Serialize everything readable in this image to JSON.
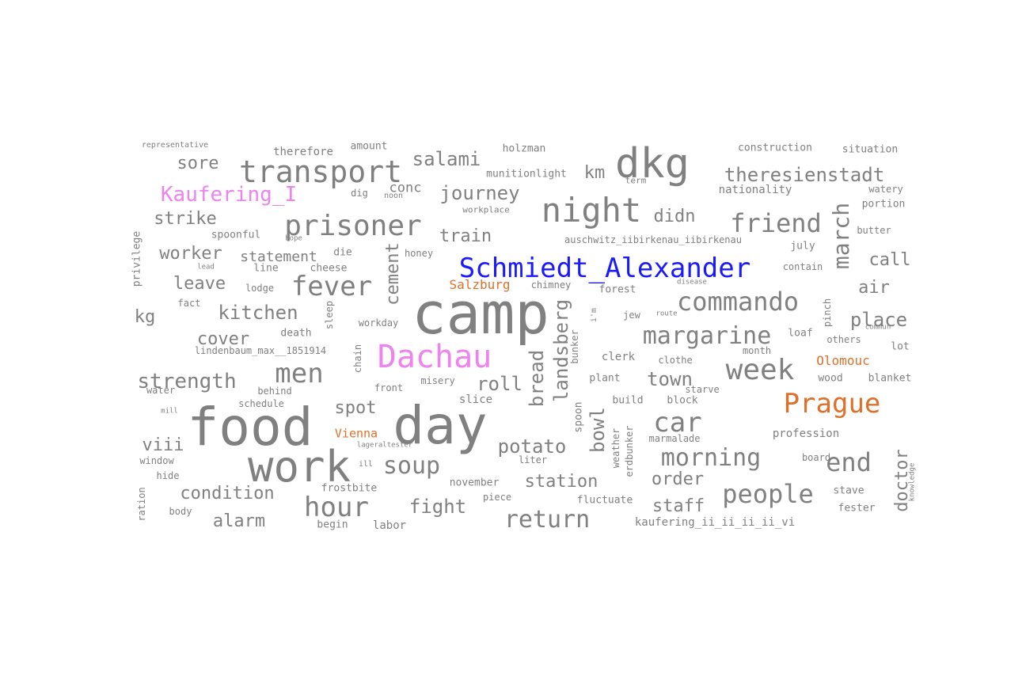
{
  "colors": {
    "default": "#808080",
    "person": "#1a1aff",
    "camp": "#ee82ee",
    "city": "#e06f2a"
  },
  "words": [
    {
      "text": "camp",
      "cat": "default"
    },
    {
      "text": "food",
      "cat": "default"
    },
    {
      "text": "day",
      "cat": "default"
    },
    {
      "text": "work",
      "cat": "default"
    },
    {
      "text": "dkg",
      "cat": "default"
    },
    {
      "text": "transport",
      "cat": "default"
    },
    {
      "text": "night",
      "cat": "default"
    },
    {
      "text": "prisoner",
      "cat": "default"
    },
    {
      "text": "Schmiedt_Alexander",
      "cat": "person"
    },
    {
      "text": "Dachau",
      "cat": "camp"
    },
    {
      "text": "Kaufering_I",
      "cat": "camp"
    },
    {
      "text": "Prague",
      "cat": "city"
    },
    {
      "text": "Salzburg",
      "cat": "city"
    },
    {
      "text": "Vienna",
      "cat": "city"
    },
    {
      "text": "Olomouc",
      "cat": "city"
    },
    {
      "text": "fever",
      "cat": "default"
    },
    {
      "text": "men",
      "cat": "default"
    },
    {
      "text": "hour",
      "cat": "default"
    },
    {
      "text": "car",
      "cat": "default"
    },
    {
      "text": "week",
      "cat": "default"
    },
    {
      "text": "friend",
      "cat": "default"
    },
    {
      "text": "commando",
      "cat": "default"
    },
    {
      "text": "margarine",
      "cat": "default"
    },
    {
      "text": "soup",
      "cat": "default"
    },
    {
      "text": "return",
      "cat": "default"
    },
    {
      "text": "people",
      "cat": "default"
    },
    {
      "text": "end",
      "cat": "default"
    },
    {
      "text": "morning",
      "cat": "default"
    },
    {
      "text": "strength",
      "cat": "default"
    },
    {
      "text": "kitchen",
      "cat": "default"
    },
    {
      "text": "potato",
      "cat": "default"
    },
    {
      "text": "roll",
      "cat": "default"
    },
    {
      "text": "spot",
      "cat": "default"
    },
    {
      "text": "fight",
      "cat": "default"
    },
    {
      "text": "station",
      "cat": "default"
    },
    {
      "text": "salami",
      "cat": "default"
    },
    {
      "text": "journey",
      "cat": "default"
    },
    {
      "text": "theresienstadt",
      "cat": "default"
    },
    {
      "text": "sore",
      "cat": "default"
    },
    {
      "text": "strike",
      "cat": "default"
    },
    {
      "text": "worker",
      "cat": "default"
    },
    {
      "text": "leave",
      "cat": "default"
    },
    {
      "text": "cover",
      "cat": "default"
    },
    {
      "text": "viii",
      "cat": "default"
    },
    {
      "text": "condition",
      "cat": "default"
    },
    {
      "text": "alarm",
      "cat": "default"
    },
    {
      "text": "kg",
      "cat": "default"
    },
    {
      "text": "train",
      "cat": "default"
    },
    {
      "text": "didn",
      "cat": "default"
    },
    {
      "text": "km",
      "cat": "default"
    },
    {
      "text": "call",
      "cat": "default"
    },
    {
      "text": "air",
      "cat": "default"
    },
    {
      "text": "place",
      "cat": "default"
    },
    {
      "text": "town",
      "cat": "default"
    },
    {
      "text": "order",
      "cat": "default"
    },
    {
      "text": "staff",
      "cat": "default"
    },
    {
      "text": "statement",
      "cat": "default"
    },
    {
      "text": "conc",
      "cat": "default"
    },
    {
      "text": "representative",
      "cat": "default"
    },
    {
      "text": "therefore",
      "cat": "default"
    },
    {
      "text": "amount",
      "cat": "default"
    },
    {
      "text": "holzman",
      "cat": "default"
    },
    {
      "text": "construction",
      "cat": "default"
    },
    {
      "text": "situation",
      "cat": "default"
    },
    {
      "text": "munitionlight",
      "cat": "default"
    },
    {
      "text": "term",
      "cat": "default"
    },
    {
      "text": "nationality",
      "cat": "default"
    },
    {
      "text": "watery",
      "cat": "default"
    },
    {
      "text": "portion",
      "cat": "default"
    },
    {
      "text": "dig",
      "cat": "default"
    },
    {
      "text": "noon",
      "cat": "default"
    },
    {
      "text": "workplace",
      "cat": "default"
    },
    {
      "text": "auschwitz_iibirkenau_iibirkenau",
      "cat": "default"
    },
    {
      "text": "july",
      "cat": "default"
    },
    {
      "text": "butter",
      "cat": "default"
    },
    {
      "text": "spoonful",
      "cat": "default"
    },
    {
      "text": "hope",
      "cat": "default"
    },
    {
      "text": "honey",
      "cat": "default"
    },
    {
      "text": "die",
      "cat": "default"
    },
    {
      "text": "contain",
      "cat": "default"
    },
    {
      "text": "lead",
      "cat": "default"
    },
    {
      "text": "line",
      "cat": "default"
    },
    {
      "text": "cheese",
      "cat": "default"
    },
    {
      "text": "lodge",
      "cat": "default"
    },
    {
      "text": "chimney",
      "cat": "default"
    },
    {
      "text": "disease",
      "cat": "default"
    },
    {
      "text": "forest",
      "cat": "default"
    },
    {
      "text": "fact",
      "cat": "default"
    },
    {
      "text": "death",
      "cat": "default"
    },
    {
      "text": "workday",
      "cat": "default"
    },
    {
      "text": "jew",
      "cat": "default"
    },
    {
      "text": "route",
      "cat": "default"
    },
    {
      "text": "commun",
      "cat": "default"
    },
    {
      "text": "loaf",
      "cat": "default"
    },
    {
      "text": "others",
      "cat": "default"
    },
    {
      "text": "lindenbaum_max__1851914",
      "cat": "default"
    },
    {
      "text": "clerk",
      "cat": "default"
    },
    {
      "text": "clothe",
      "cat": "default"
    },
    {
      "text": "month",
      "cat": "default"
    },
    {
      "text": "lot",
      "cat": "default"
    },
    {
      "text": "water",
      "cat": "default"
    },
    {
      "text": "behind",
      "cat": "default"
    },
    {
      "text": "misery",
      "cat": "default"
    },
    {
      "text": "front",
      "cat": "default"
    },
    {
      "text": "plant",
      "cat": "default"
    },
    {
      "text": "starve",
      "cat": "default"
    },
    {
      "text": "wood",
      "cat": "default"
    },
    {
      "text": "blanket",
      "cat": "default"
    },
    {
      "text": "schedule",
      "cat": "default"
    },
    {
      "text": "slice",
      "cat": "default"
    },
    {
      "text": "build",
      "cat": "default"
    },
    {
      "text": "block",
      "cat": "default"
    },
    {
      "text": "mill",
      "cat": "default"
    },
    {
      "text": "lageraltester",
      "cat": "default"
    },
    {
      "text": "marmalade",
      "cat": "default"
    },
    {
      "text": "profession",
      "cat": "default"
    },
    {
      "text": "window",
      "cat": "default"
    },
    {
      "text": "ill",
      "cat": "default"
    },
    {
      "text": "liter",
      "cat": "default"
    },
    {
      "text": "board",
      "cat": "default"
    },
    {
      "text": "hide",
      "cat": "default"
    },
    {
      "text": "frostbite",
      "cat": "default"
    },
    {
      "text": "november",
      "cat": "default"
    },
    {
      "text": "stave",
      "cat": "default"
    },
    {
      "text": "piece",
      "cat": "default"
    },
    {
      "text": "fluctuate",
      "cat": "default"
    },
    {
      "text": "fester",
      "cat": "default"
    },
    {
      "text": "body",
      "cat": "default"
    },
    {
      "text": "begin",
      "cat": "default"
    },
    {
      "text": "labor",
      "cat": "default"
    },
    {
      "text": "kaufering_ii_ii_ii_ii_vi",
      "cat": "default"
    },
    {
      "text": "march",
      "cat": "default"
    },
    {
      "text": "cement",
      "cat": "default"
    },
    {
      "text": "bread",
      "cat": "default"
    },
    {
      "text": "landsberg",
      "cat": "default"
    },
    {
      "text": "bowl",
      "cat": "default"
    },
    {
      "text": "doctor",
      "cat": "default"
    },
    {
      "text": "privilege",
      "cat": "default"
    },
    {
      "text": "sleep",
      "cat": "default"
    },
    {
      "text": "chain",
      "cat": "default"
    },
    {
      "text": "bunker",
      "cat": "default"
    },
    {
      "text": "spoon",
      "cat": "default"
    },
    {
      "text": "weather",
      "cat": "default"
    },
    {
      "text": "erdbunker",
      "cat": "default"
    },
    {
      "text": "ration",
      "cat": "default"
    },
    {
      "text": "pinch",
      "cat": "default"
    },
    {
      "text": "i'm",
      "cat": "default"
    },
    {
      "text": "knowledge",
      "cat": "default"
    }
  ]
}
